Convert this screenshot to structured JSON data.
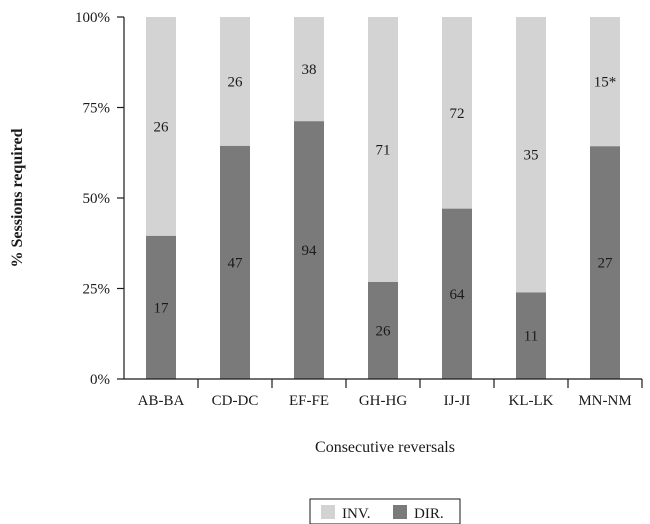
{
  "chart_data": {
    "type": "bar",
    "stacked": "percent",
    "categories": [
      "AB-BA",
      "CD-DC",
      "EF-FE",
      "GH-HG",
      "IJ-JI",
      "KL-LK",
      "MN-NM"
    ],
    "series": [
      {
        "name": "DIR.",
        "color": "#7a7a7a",
        "values": [
          17,
          47,
          94,
          26,
          64,
          11,
          27
        ],
        "labels": [
          "17",
          "47",
          "94",
          "26",
          "64",
          "11",
          "27"
        ]
      },
      {
        "name": "INV.",
        "color": "#d3d3d3",
        "values": [
          26,
          26,
          38,
          71,
          72,
          35,
          15
        ],
        "labels": [
          "26",
          "26",
          "38",
          "71",
          "72",
          "35",
          "15*"
        ]
      }
    ],
    "ylabel": "% Sessions required",
    "xlabel": "Consecutive reversals",
    "yticks": [
      "0%",
      "25%",
      "50%",
      "75%",
      "100%"
    ],
    "ylim": [
      0,
      100
    ],
    "grid": false,
    "legend_position": "bottom-center"
  }
}
